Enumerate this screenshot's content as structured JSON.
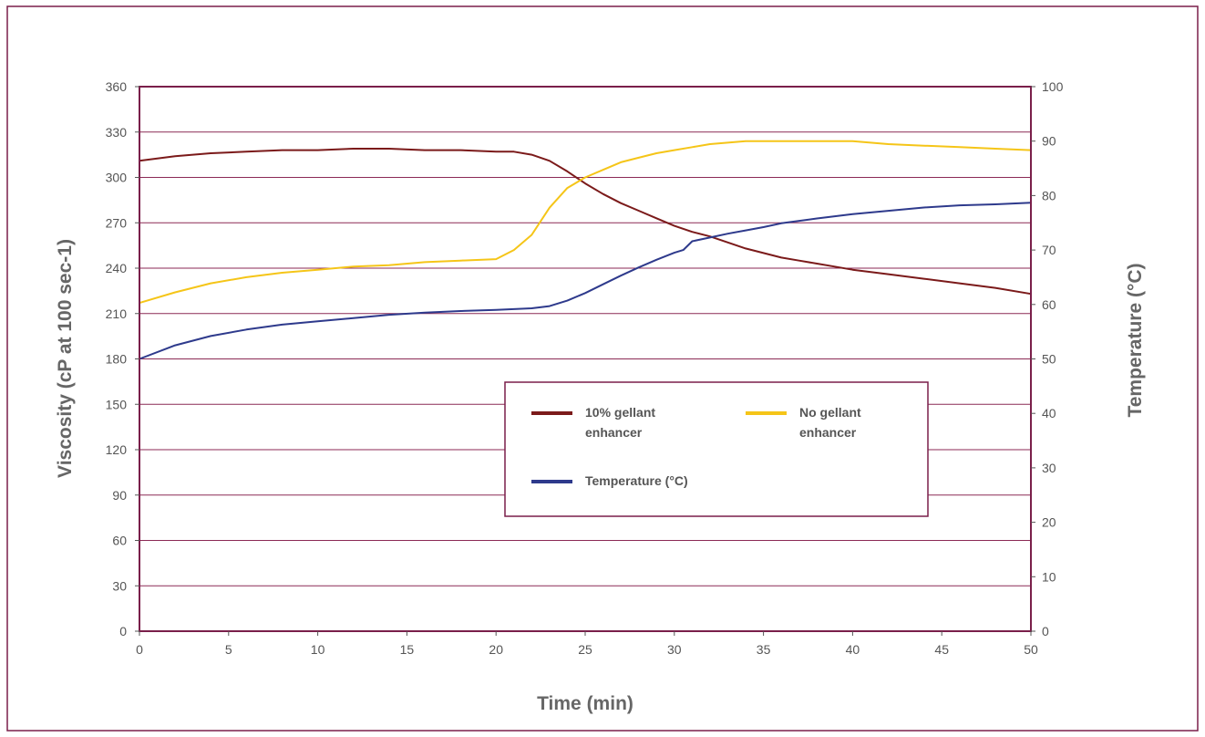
{
  "chart_data": {
    "type": "line",
    "xlabel": "Time (min)",
    "ylabel": "Viscosity (cP at 100 sec-1)",
    "y2label": "Temperature (°C)",
    "xlim": [
      0,
      50
    ],
    "ylim": [
      0,
      360
    ],
    "y2lim": [
      0,
      100
    ],
    "x_ticks": [
      0,
      5,
      10,
      15,
      20,
      25,
      30,
      35,
      40,
      45,
      50
    ],
    "y_ticks": [
      0,
      30,
      60,
      90,
      120,
      150,
      180,
      210,
      240,
      270,
      300,
      330,
      360
    ],
    "y2_ticks": [
      0,
      10,
      20,
      30,
      40,
      50,
      60,
      70,
      80,
      90,
      100
    ],
    "grid": true,
    "legend_position": "center-right",
    "colors": {
      "frame": "#7a1f4a",
      "grid": "#8b2a55"
    },
    "series": [
      {
        "name": "10% gellant\nenhancer",
        "axis": "left",
        "color": "#7b1a1a",
        "x": [
          0,
          2,
          4,
          6,
          8,
          10,
          12,
          14,
          16,
          18,
          20,
          21,
          22,
          23,
          24,
          25,
          26,
          27,
          28,
          29,
          30,
          31,
          32,
          33,
          34,
          35,
          36,
          37,
          38,
          39,
          40,
          42,
          44,
          46,
          48,
          50
        ],
        "y": [
          311,
          314,
          316,
          317,
          318,
          318,
          319,
          319,
          318,
          318,
          317,
          317,
          315,
          311,
          304,
          296,
          289,
          283,
          278,
          273,
          268,
          264,
          261,
          257,
          253,
          250,
          247,
          245,
          243,
          241,
          239,
          236,
          233,
          230,
          227,
          223
        ]
      },
      {
        "name": "No gellant\nenhancer",
        "axis": "left",
        "color": "#f5c518",
        "x": [
          0,
          2,
          4,
          6,
          8,
          10,
          12,
          14,
          16,
          18,
          20,
          21,
          22,
          23,
          24,
          25,
          26,
          27,
          28,
          29,
          30,
          31,
          32,
          33,
          34,
          35,
          36,
          38,
          40,
          42,
          44,
          46,
          48,
          50
        ],
        "y": [
          217,
          224,
          230,
          234,
          237,
          239,
          241,
          242,
          244,
          245,
          246,
          252,
          262,
          280,
          293,
          300,
          305,
          310,
          313,
          316,
          318,
          320,
          322,
          323,
          324,
          324,
          324,
          324,
          324,
          322,
          321,
          320,
          319,
          318
        ]
      },
      {
        "name": "Temperature (°C)",
        "axis": "right",
        "color": "#2e3a8c",
        "x": [
          0,
          2,
          4,
          6,
          8,
          10,
          12,
          14,
          16,
          18,
          20,
          22,
          23,
          24,
          25,
          26,
          27,
          28,
          29,
          30,
          30.5,
          31,
          32,
          33,
          34,
          35,
          36,
          38,
          40,
          42,
          44,
          46,
          48,
          50
        ],
        "y": [
          50,
          52.5,
          54.2,
          55.4,
          56.3,
          56.9,
          57.5,
          58.1,
          58.5,
          58.8,
          59.0,
          59.3,
          59.7,
          60.7,
          62.1,
          63.7,
          65.3,
          66.8,
          68.2,
          69.5,
          70.0,
          71.6,
          72.3,
          73.0,
          73.6,
          74.2,
          74.9,
          75.8,
          76.6,
          77.2,
          77.8,
          78.2,
          78.4,
          78.7
        ]
      }
    ]
  }
}
